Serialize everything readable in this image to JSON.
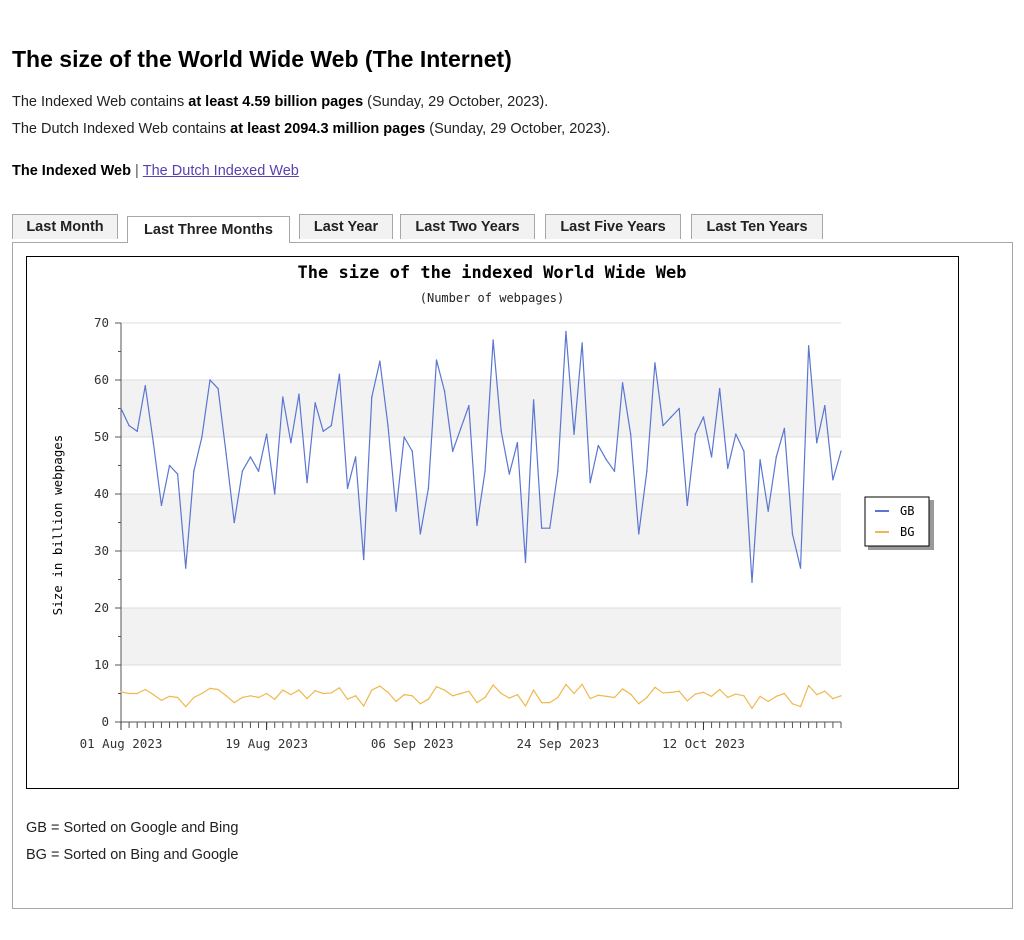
{
  "page": {
    "title": "The size of the World Wide Web (The Internet)",
    "info1": {
      "prefix": "The Indexed Web contains ",
      "bold": "at least 4.59 billion pages",
      "suffix": " (Sunday, 29 October, 2023)."
    },
    "info2": {
      "prefix": "The Dutch Indexed Web contains ",
      "bold": "at least 2094.3 million pages",
      "suffix": " (Sunday, 29 October, 2023)."
    },
    "nav": {
      "current": "The Indexed Web",
      "separator": "|",
      "link": "The Dutch Indexed Web"
    },
    "link_color": "#5b3fb0",
    "tabs": [
      {
        "label": "Last Month",
        "active": false
      },
      {
        "label": "Last Three Months",
        "active": true
      },
      {
        "label": "Last Year",
        "active": false
      },
      {
        "label": "Last Two Years",
        "active": false
      },
      {
        "label": "Last Five Years",
        "active": false
      },
      {
        "label": "Last Ten Years",
        "active": false
      }
    ],
    "notes": [
      "GB = Sorted on Google and Bing",
      "BG = Sorted on Bing and Google"
    ]
  },
  "chart_data": {
    "type": "line",
    "title": "The size of the indexed World Wide Web",
    "subtitle": "(Number of webpages)",
    "ylabel": "Size in billion webpages",
    "xlabel": "",
    "ylim": [
      0,
      70
    ],
    "yticks": [
      0,
      10,
      20,
      30,
      40,
      50,
      60,
      70
    ],
    "xtick_labels": [
      {
        "day": 0,
        "label": "01 Aug 2023"
      },
      {
        "day": 18,
        "label": "19 Aug 2023"
      },
      {
        "day": 36,
        "label": "06 Sep 2023"
      },
      {
        "day": 54,
        "label": "24 Sep 2023"
      },
      {
        "day": 72,
        "label": "12 Oct 2023"
      }
    ],
    "x_start": "2023-08-01",
    "x_end": "2023-10-29",
    "grid": true,
    "legend_position": "right",
    "series": [
      {
        "name": "GB",
        "color": "#5b76d1",
        "values": [
          55,
          52,
          51,
          59,
          49,
          38,
          45,
          43.5,
          27,
          44,
          50,
          60,
          58.5,
          47,
          35,
          44,
          46.5,
          44,
          50.5,
          40,
          57,
          49,
          57.5,
          42,
          56,
          51,
          52,
          61,
          41,
          46.5,
          28.5,
          57,
          63.3,
          52,
          37,
          50,
          47.5,
          33,
          41,
          63.5,
          58,
          47.5,
          51.5,
          55.5,
          34.5,
          44,
          67,
          51,
          43.5,
          49,
          28,
          56.5,
          34,
          34,
          44,
          68.5,
          50.5,
          66.5,
          42,
          48.5,
          46,
          44,
          59.5,
          50.5,
          33,
          44,
          63,
          52,
          53.5,
          55,
          38,
          50.5,
          53.5,
          46.5,
          58.5,
          44.5,
          50.5,
          47.5,
          24.5,
          46,
          37,
          46.5,
          51.5,
          33,
          27,
          66,
          49,
          55.5,
          42.5,
          47.5
        ]
      },
      {
        "name": "BG",
        "color": "#f0b84e",
        "values": [
          5.3,
          5,
          5,
          5.7,
          4.8,
          3.8,
          4.5,
          4.3,
          2.7,
          4.3,
          5,
          5.9,
          5.7,
          4.6,
          3.4,
          4.3,
          4.6,
          4.3,
          5,
          4,
          5.6,
          4.8,
          5.6,
          4.1,
          5.5,
          5,
          5.1,
          6,
          4,
          4.6,
          2.8,
          5.6,
          6.3,
          5.2,
          3.6,
          4.8,
          4.6,
          3.2,
          4,
          6.2,
          5.6,
          4.6,
          5,
          5.4,
          3.4,
          4.3,
          6.5,
          5,
          4.2,
          4.8,
          2.8,
          5.6,
          3.4,
          3.4,
          4.3,
          6.6,
          5,
          6.6,
          4.1,
          4.7,
          4.5,
          4.3,
          5.8,
          4.9,
          3.2,
          4.3,
          6.1,
          5.1,
          5.2,
          5.4,
          3.7,
          4.9,
          5.2,
          4.5,
          5.7,
          4.3,
          4.9,
          4.6,
          2.4,
          4.5,
          3.6,
          4.5,
          5,
          3.2,
          2.7,
          6.4,
          4.8,
          5.4,
          4.1,
          4.6
        ]
      }
    ]
  }
}
